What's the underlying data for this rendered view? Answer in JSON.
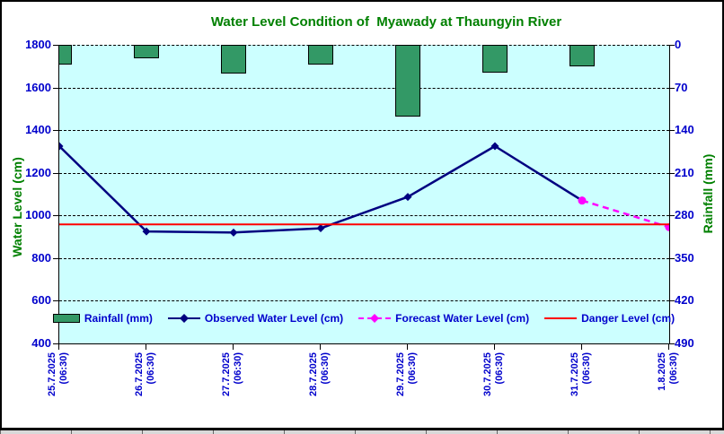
{
  "title": "Water Level Condition of  Myawady at Thaungyin River",
  "left_axis": {
    "title": "Water Level (cm)",
    "ticks": [
      1800,
      1600,
      1400,
      1200,
      1000,
      800,
      600,
      400
    ]
  },
  "right_axis": {
    "title": "Rainfall (mm)",
    "ticks": [
      0,
      70,
      140,
      210,
      280,
      350,
      420,
      490
    ]
  },
  "x_axis": {
    "labels": [
      {
        "date": "25.7.2025",
        "time": "(06:30)"
      },
      {
        "date": "26.7.2025",
        "time": "(06:30)"
      },
      {
        "date": "27.7.2025",
        "time": "(06:30)"
      },
      {
        "date": "28.7.2025",
        "time": "(06:30)"
      },
      {
        "date": "29.7.2025",
        "time": "(06:30)"
      },
      {
        "date": "30.7.2025",
        "time": "(06:30)"
      },
      {
        "date": "31.7.2025",
        "time": "(06:30)"
      },
      {
        "date": "1.8.2025",
        "time": "(06:30)"
      }
    ]
  },
  "legend": {
    "items": [
      {
        "label": "Rainfall (mm)"
      },
      {
        "label": "Observed Water Level (cm)"
      },
      {
        "label": "Forecast Water Level (cm)"
      },
      {
        "label": "Danger Level (cm)"
      }
    ]
  },
  "colors": {
    "plot_bg": "#CCFFFF",
    "bar": "#339966",
    "observed": "#000080",
    "forecast": "#FF00FF",
    "danger": "#FF0000",
    "title_green": "#008000",
    "tick_label_blue": "#0000CC"
  },
  "chart_data": {
    "type": "bar",
    "subtype": "combo-bar-line",
    "title": "Water Level Condition of  Myawady at Thaungyin River",
    "categories": [
      "25.7.2025 (06:30)",
      "26.7.2025 (06:30)",
      "27.7.2025 (06:30)",
      "28.7.2025 (06:30)",
      "29.7.2025 (06:30)",
      "30.7.2025 (06:30)",
      "31.7.2025 (06:30)",
      "1.8.2025 (06:30)"
    ],
    "left_ylabel": "Water Level (cm)",
    "left_ylim": [
      400,
      1800
    ],
    "right_ylabel": "Rainfall (mm)",
    "right_ylim": [
      0,
      490
    ],
    "right_axis_inverted_from_top": true,
    "grid": "horizontal-dashed",
    "legend_position": "bottom-inside",
    "series": [
      {
        "name": "Rainfall (mm)",
        "type": "bar",
        "axis": "right",
        "hang_from_top": true,
        "values": [
          33,
          22,
          47,
          33,
          117,
          46,
          35,
          null
        ]
      },
      {
        "name": "Observed Water Level (cm)",
        "type": "line",
        "axis": "left",
        "marker": "diamond",
        "values": [
          1325,
          925,
          920,
          940,
          1087,
          1325,
          1070,
          null
        ]
      },
      {
        "name": "Forecast Water Level (cm)",
        "type": "line",
        "dashed": true,
        "axis": "left",
        "marker": "circle",
        "values": [
          null,
          null,
          null,
          null,
          null,
          null,
          1070,
          945
        ]
      },
      {
        "name": "Danger Level (cm)",
        "type": "hline",
        "axis": "left",
        "value": 958
      }
    ]
  }
}
